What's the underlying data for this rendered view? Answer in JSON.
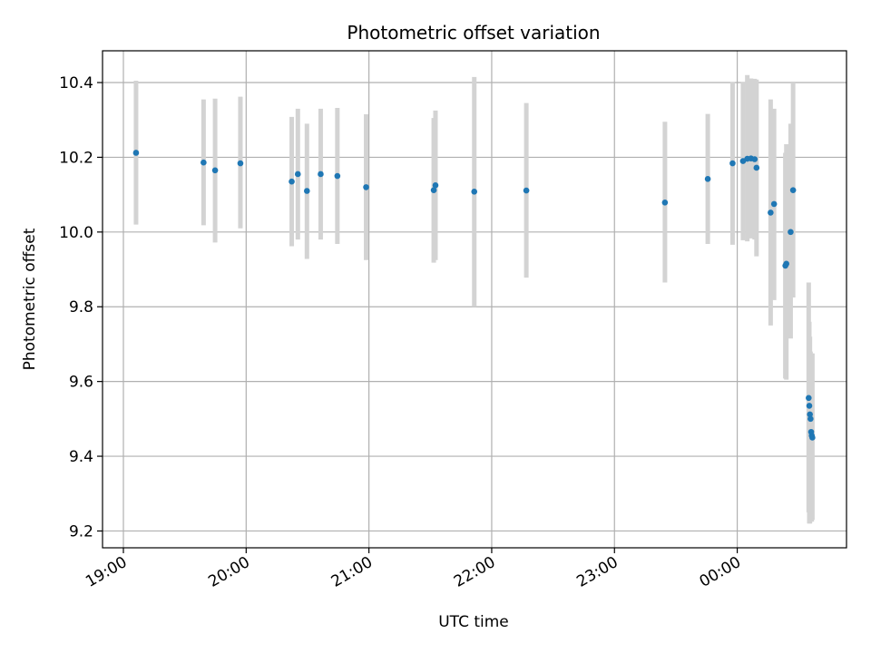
{
  "chart_data": {
    "type": "scatter",
    "title": "Photometric offset variation",
    "xlabel": "UTC time",
    "ylabel": "Photometric offset",
    "x_unit": "hours",
    "xlim": [
      18.83,
      24.89
    ],
    "ylim": [
      9.155,
      10.485
    ],
    "grid": true,
    "x_ticks": [
      {
        "value": 19,
        "label": "19:00"
      },
      {
        "value": 20,
        "label": "20:00"
      },
      {
        "value": 21,
        "label": "21:00"
      },
      {
        "value": 22,
        "label": "22:00"
      },
      {
        "value": 23,
        "label": "23:00"
      },
      {
        "value": 24,
        "label": "00:00"
      }
    ],
    "y_ticks": [
      {
        "value": 9.2,
        "label": "9.2"
      },
      {
        "value": 9.4,
        "label": "9.4"
      },
      {
        "value": 9.6,
        "label": "9.6"
      },
      {
        "value": 9.8,
        "label": "9.8"
      },
      {
        "value": 10.0,
        "label": "10.0"
      },
      {
        "value": 10.2,
        "label": "10.2"
      },
      {
        "value": 10.4,
        "label": "10.4"
      }
    ],
    "colors": {
      "points": "#1f77b4",
      "error_bars": "#d3d3d3",
      "grid": "#b0b0b0"
    },
    "points": [
      {
        "x": 19.103,
        "y": 10.212,
        "lo": 10.02,
        "hi": 10.405
      },
      {
        "x": 19.653,
        "y": 10.186,
        "lo": 10.018,
        "hi": 10.355
      },
      {
        "x": 19.747,
        "y": 10.165,
        "lo": 9.972,
        "hi": 10.357
      },
      {
        "x": 19.953,
        "y": 10.184,
        "lo": 10.01,
        "hi": 10.362
      },
      {
        "x": 20.371,
        "y": 10.135,
        "lo": 9.962,
        "hi": 10.308
      },
      {
        "x": 20.421,
        "y": 10.155,
        "lo": 9.98,
        "hi": 10.33
      },
      {
        "x": 20.495,
        "y": 10.11,
        "lo": 9.928,
        "hi": 10.29
      },
      {
        "x": 20.607,
        "y": 10.155,
        "lo": 9.98,
        "hi": 10.33
      },
      {
        "x": 20.743,
        "y": 10.15,
        "lo": 9.968,
        "hi": 10.332
      },
      {
        "x": 20.977,
        "y": 10.12,
        "lo": 9.925,
        "hi": 10.315
      },
      {
        "x": 21.528,
        "y": 10.112,
        "lo": 9.918,
        "hi": 10.305
      },
      {
        "x": 21.542,
        "y": 10.125,
        "lo": 9.925,
        "hi": 10.325
      },
      {
        "x": 21.858,
        "y": 10.108,
        "lo": 9.8,
        "hi": 10.415
      },
      {
        "x": 22.282,
        "y": 10.111,
        "lo": 9.878,
        "hi": 10.345
      },
      {
        "x": 23.411,
        "y": 10.079,
        "lo": 9.865,
        "hi": 10.295
      },
      {
        "x": 23.76,
        "y": 10.142,
        "lo": 9.968,
        "hi": 10.316
      },
      {
        "x": 23.962,
        "y": 10.184,
        "lo": 9.966,
        "hi": 10.402
      },
      {
        "x": 24.047,
        "y": 10.19,
        "lo": 9.978,
        "hi": 10.402
      },
      {
        "x": 24.082,
        "y": 10.196,
        "lo": 9.975,
        "hi": 10.42
      },
      {
        "x": 24.112,
        "y": 10.197,
        "lo": 9.983,
        "hi": 10.411
      },
      {
        "x": 24.142,
        "y": 10.195,
        "lo": 9.98,
        "hi": 10.41
      },
      {
        "x": 24.157,
        "y": 10.172,
        "lo": 9.935,
        "hi": 10.408
      },
      {
        "x": 24.272,
        "y": 10.052,
        "lo": 9.75,
        "hi": 10.355
      },
      {
        "x": 24.3,
        "y": 10.075,
        "lo": 9.818,
        "hi": 10.33
      },
      {
        "x": 24.392,
        "y": 9.91,
        "lo": 9.608,
        "hi": 10.212
      },
      {
        "x": 24.4,
        "y": 9.915,
        "lo": 9.605,
        "hi": 10.235
      },
      {
        "x": 24.435,
        "y": 10.0,
        "lo": 9.715,
        "hi": 10.29
      },
      {
        "x": 24.455,
        "y": 10.112,
        "lo": 9.825,
        "hi": 10.4
      },
      {
        "x": 24.582,
        "y": 9.556,
        "lo": 9.25,
        "hi": 9.865
      },
      {
        "x": 24.587,
        "y": 9.535,
        "lo": 9.22,
        "hi": 9.76
      },
      {
        "x": 24.592,
        "y": 9.512,
        "lo": 9.22,
        "hi": 9.72
      },
      {
        "x": 24.597,
        "y": 9.5,
        "lo": 9.235,
        "hi": 9.68
      },
      {
        "x": 24.602,
        "y": 9.465,
        "lo": 9.225,
        "hi": 9.67
      },
      {
        "x": 24.607,
        "y": 9.455,
        "lo": 9.225,
        "hi": 9.675
      },
      {
        "x": 24.612,
        "y": 9.45,
        "lo": 9.23,
        "hi": 9.675
      }
    ]
  }
}
